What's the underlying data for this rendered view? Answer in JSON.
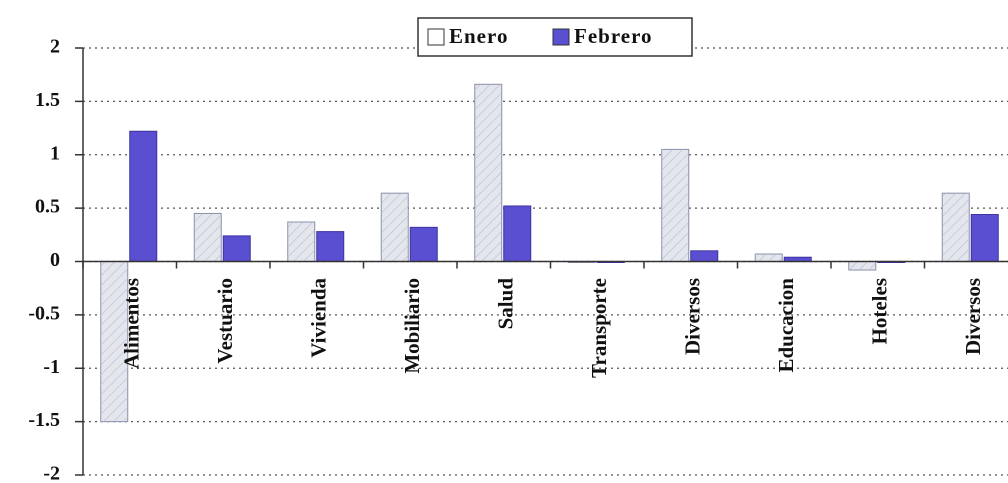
{
  "chart_data": {
    "type": "bar",
    "categories": [
      "Alimentos",
      "Vestuario",
      "Vivienda",
      "Mobiliario",
      "Salud",
      "Transporte",
      "Diversos",
      "Educacion",
      "Hoteles",
      "Diversos"
    ],
    "series": [
      {
        "name": "Enero",
        "color": "#e4e6ee",
        "values": [
          -1.5,
          0.45,
          0.37,
          0.64,
          1.66,
          0,
          1.05,
          0.07,
          -0.08,
          0.64
        ]
      },
      {
        "name": "Febrero",
        "color": "#5a4fd0",
        "values": [
          1.22,
          0.24,
          0.28,
          0.32,
          0.52,
          0,
          0.1,
          0.04,
          0,
          0.44
        ]
      }
    ],
    "ylim": [
      -2,
      2
    ],
    "yticks": [
      2,
      1.5,
      1,
      0.5,
      0,
      -0.5,
      -1,
      -1.5,
      -2
    ],
    "grid": true,
    "legend": "top"
  }
}
